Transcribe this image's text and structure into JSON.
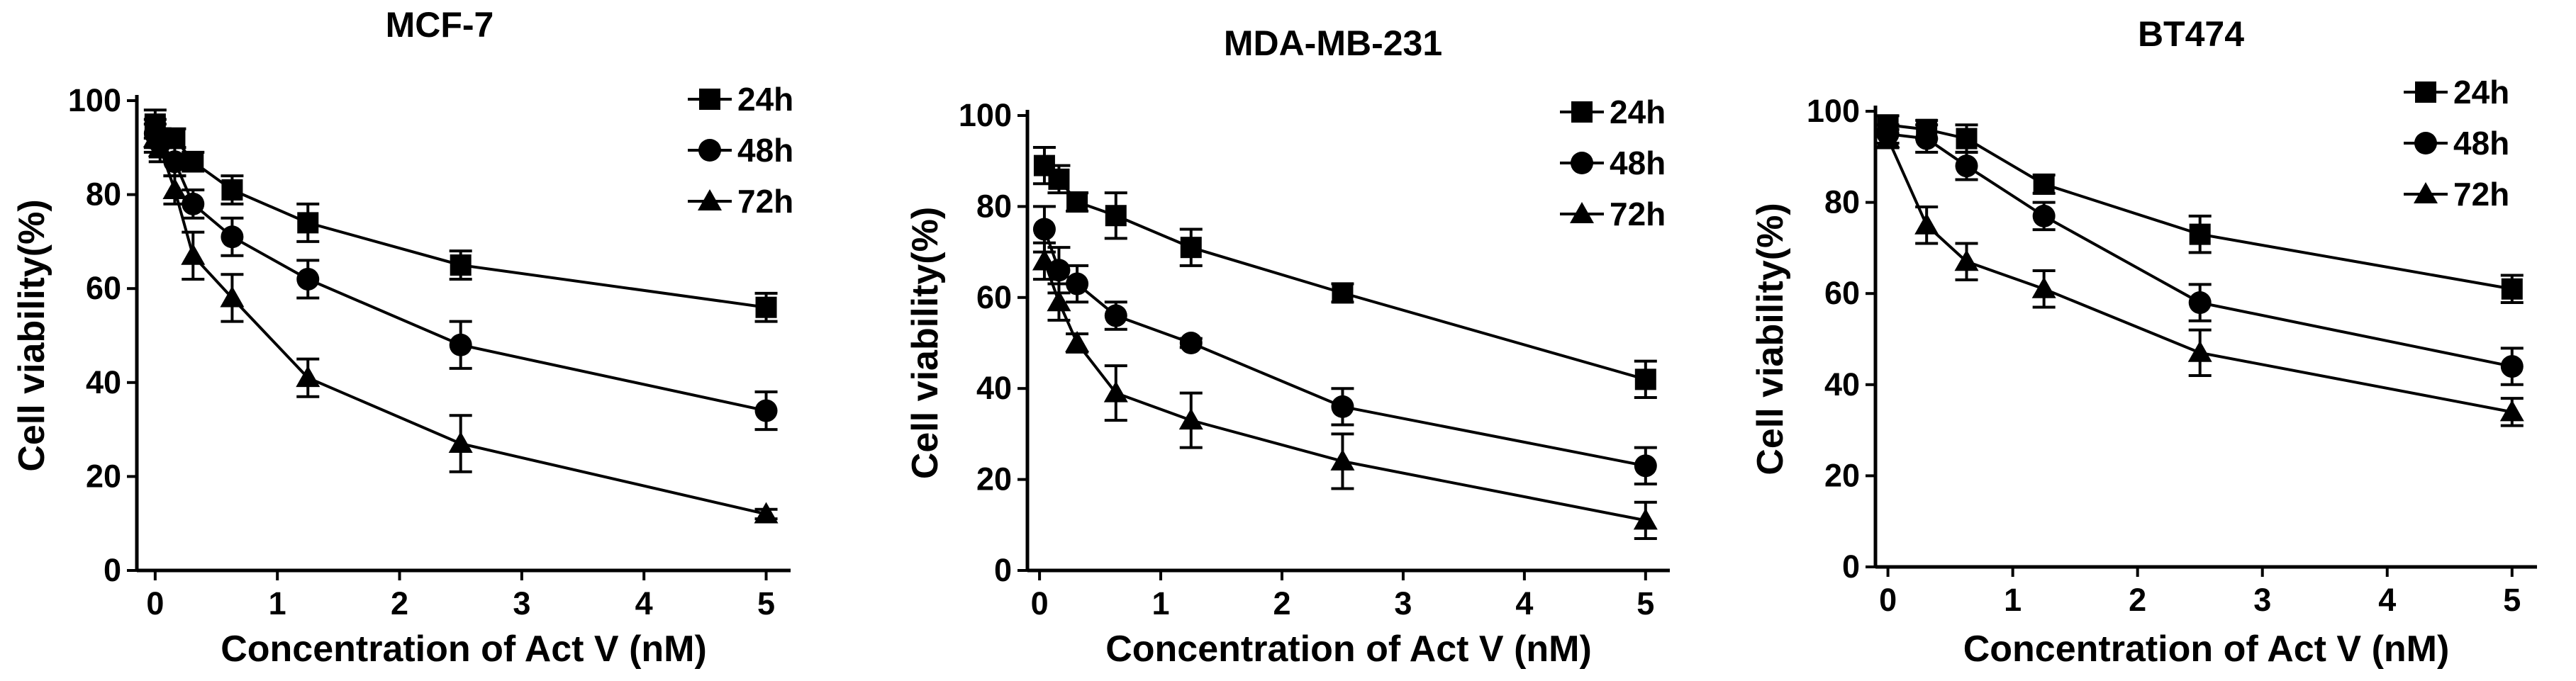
{
  "chart_data": [
    {
      "type": "line",
      "title": "MCF-7",
      "xlabel": "Concentration of Act V (nM)",
      "ylabel": "Cell viability(%)",
      "xlim": [
        -0.15,
        5.2
      ],
      "ylim": [
        0,
        100
      ],
      "xticks": [
        0,
        1,
        2,
        3,
        4,
        5
      ],
      "yticks": [
        0,
        20,
        40,
        60,
        80,
        100
      ],
      "legend_position": "top-right",
      "series": [
        {
          "name": "24h",
          "marker": "square",
          "color": "#000000",
          "x": [
            0,
            0.04,
            0.16,
            0.31,
            0.63,
            1.25,
            2.5,
            5
          ],
          "y": [
            95,
            92,
            92,
            87,
            81,
            74,
            65,
            56
          ],
          "err": [
            3,
            2,
            2,
            2,
            3,
            4,
            3,
            3
          ]
        },
        {
          "name": "48h",
          "marker": "circle",
          "color": "#000000",
          "x": [
            0,
            0.04,
            0.16,
            0.31,
            0.63,
            1.25,
            2.5,
            5
          ],
          "y": [
            93,
            91,
            87,
            78,
            71,
            62,
            48,
            34
          ],
          "err": [
            3,
            3,
            3,
            3,
            4,
            4,
            5,
            4
          ]
        },
        {
          "name": "72h",
          "marker": "triangle",
          "color": "#000000",
          "x": [
            0,
            0.04,
            0.16,
            0.31,
            0.63,
            1.25,
            2.5,
            5
          ],
          "y": [
            92,
            90,
            81,
            67,
            58,
            41,
            27,
            12
          ],
          "err": [
            3,
            3,
            3,
            5,
            5,
            4,
            6,
            1
          ]
        }
      ]
    },
    {
      "type": "line",
      "title": "MDA-MB-231",
      "xlabel": "Concentration of Act V (nM)",
      "ylabel": "Cell viability(%)",
      "xlim": [
        -0.1,
        5.2
      ],
      "ylim": [
        0,
        100
      ],
      "xticks": [
        0,
        1,
        2,
        3,
        4,
        5
      ],
      "yticks": [
        0,
        20,
        40,
        60,
        80,
        100
      ],
      "legend_position": "top-right",
      "series": [
        {
          "name": "24h",
          "marker": "square",
          "color": "#000000",
          "x": [
            0.04,
            0.16,
            0.31,
            0.63,
            1.25,
            2.5,
            5
          ],
          "y": [
            89,
            86,
            81,
            78,
            71,
            61,
            42
          ],
          "err": [
            4,
            3,
            2,
            5,
            4,
            2,
            4
          ]
        },
        {
          "name": "48h",
          "marker": "circle",
          "color": "#000000",
          "x": [
            0.04,
            0.16,
            0.31,
            0.63,
            1.25,
            2.5,
            5
          ],
          "y": [
            75,
            66,
            63,
            56,
            50,
            36,
            23
          ],
          "err": [
            5,
            5,
            4,
            3,
            1,
            4,
            4
          ]
        },
        {
          "name": "72h",
          "marker": "triangle",
          "color": "#000000",
          "x": [
            0.04,
            0.16,
            0.31,
            0.63,
            1.25,
            2.5,
            5
          ],
          "y": [
            68,
            59,
            50,
            39,
            33,
            24,
            11
          ],
          "err": [
            4,
            4,
            2,
            6,
            6,
            6,
            4
          ]
        }
      ]
    },
    {
      "type": "line",
      "title": "BT474",
      "xlabel": "Concentration of Act V (nM)",
      "ylabel": "Cell viability(%)",
      "xlim": [
        -0.1,
        5.2
      ],
      "ylim": [
        0,
        100
      ],
      "xticks": [
        0,
        1,
        2,
        3,
        4,
        5
      ],
      "yticks": [
        0,
        20,
        40,
        60,
        80,
        100
      ],
      "legend_position": "top-right",
      "series": [
        {
          "name": "24h",
          "marker": "square",
          "color": "#000000",
          "x": [
            0,
            0.31,
            0.63,
            1.25,
            2.5,
            5
          ],
          "y": [
            97,
            96,
            94,
            84,
            73,
            61
          ],
          "err": [
            2,
            2,
            3,
            2,
            4,
            3
          ]
        },
        {
          "name": "48h",
          "marker": "circle",
          "color": "#000000",
          "x": [
            0,
            0.31,
            0.63,
            1.25,
            2.5,
            5
          ],
          "y": [
            95,
            94,
            88,
            77,
            58,
            44
          ],
          "err": [
            2,
            3,
            3,
            3,
            4,
            4
          ]
        },
        {
          "name": "72h",
          "marker": "triangle",
          "color": "#000000",
          "x": [
            0,
            0.31,
            0.63,
            1.25,
            2.5,
            5
          ],
          "y": [
            94,
            75,
            67,
            61,
            47,
            34
          ],
          "err": [
            2,
            4,
            4,
            4,
            5,
            3
          ]
        }
      ]
    }
  ]
}
